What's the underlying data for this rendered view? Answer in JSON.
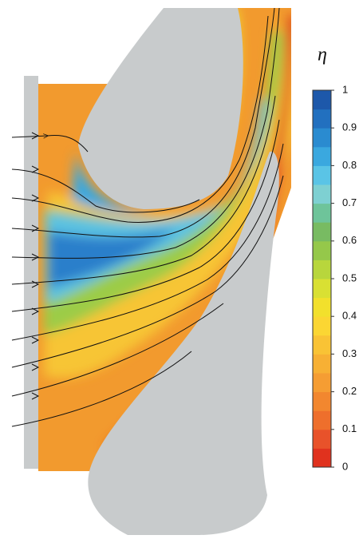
{
  "chart_data": {
    "type": "contour",
    "colorbar_label": "η",
    "clim": [
      0,
      1
    ],
    "cticks": [
      0,
      0.1,
      0.2,
      0.3,
      0.4,
      0.5,
      0.6,
      0.7,
      0.8,
      0.9,
      1
    ],
    "colors": [
      "#e0321e",
      "#e8522a",
      "#ee6f2c",
      "#f2872f",
      "#f59d33",
      "#f7b034",
      "#f9c335",
      "#fbd633",
      "#f2e02c",
      "#d9e033",
      "#b8d63c",
      "#95c84a",
      "#78bb62",
      "#6ec49a",
      "#7ed0d2",
      "#5ac4e6",
      "#3aa8df",
      "#2a8bd0",
      "#2270bf",
      "#1d58aa"
    ]
  }
}
